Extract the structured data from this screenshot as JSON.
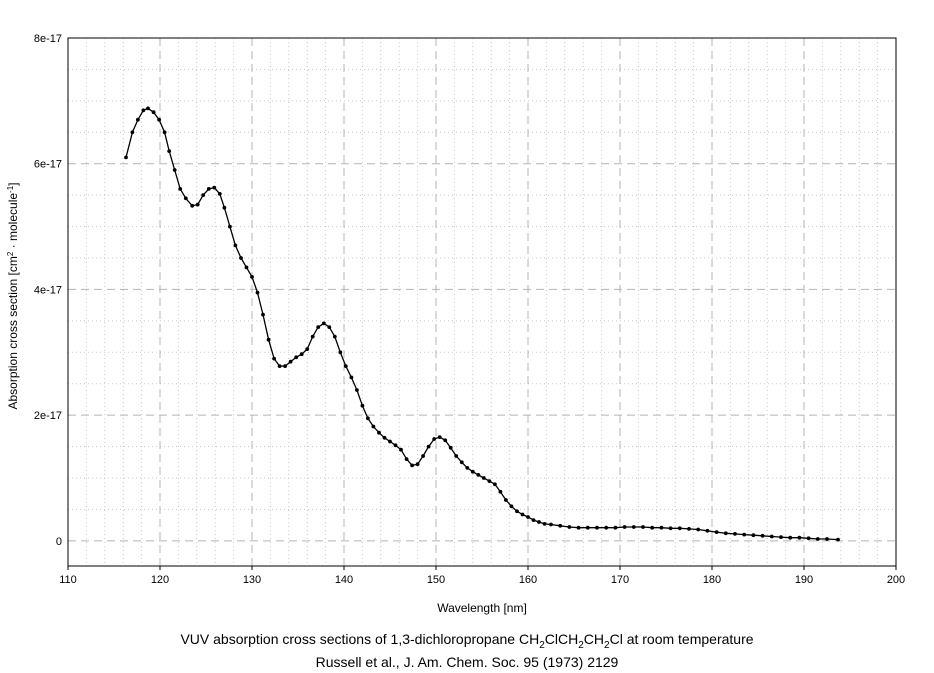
{
  "chart_data": {
    "type": "line",
    "xlabel": "Wavelength [nm]",
    "ylabel_parts": [
      "Absorption cross section [cm",
      "2",
      " · molecule",
      "-1",
      "]"
    ],
    "xlim": [
      110,
      200
    ],
    "ylim": [
      -4e-18,
      8e-17
    ],
    "x_ticks": [
      110,
      120,
      130,
      140,
      150,
      160,
      170,
      180,
      190,
      200
    ],
    "x_tick_labels": [
      "110",
      "120",
      "130",
      "140",
      "150",
      "160",
      "170",
      "180",
      "190",
      "200"
    ],
    "y_ticks": [
      0,
      2e-17,
      4e-17,
      6e-17,
      8e-17
    ],
    "y_tick_labels": [
      "0",
      "2e-17",
      "4e-17",
      "6e-17",
      "8e-17"
    ],
    "grid": true,
    "legend": "none",
    "series": [
      {
        "color": "#000000",
        "marker": "dot",
        "x": [
          116.3,
          117.0,
          117.6,
          118.2,
          118.7,
          119.3,
          119.9,
          120.5,
          121.0,
          121.6,
          122.2,
          122.8,
          123.5,
          124.1,
          124.7,
          125.3,
          125.9,
          126.5,
          127.0,
          127.6,
          128.2,
          128.8,
          129.4,
          130.0,
          130.6,
          131.2,
          131.8,
          132.4,
          133.0,
          133.6,
          134.2,
          134.8,
          135.4,
          136.0,
          136.6,
          137.2,
          137.8,
          138.4,
          139.0,
          139.6,
          140.2,
          140.8,
          141.4,
          142.0,
          142.6,
          143.2,
          143.8,
          144.4,
          145.0,
          145.6,
          146.2,
          146.8,
          147.4,
          148.0,
          148.6,
          149.2,
          149.8,
          150.4,
          151.0,
          151.6,
          152.2,
          152.8,
          153.4,
          154.0,
          154.6,
          155.2,
          155.8,
          156.4,
          157.0,
          157.6,
          158.2,
          158.8,
          159.4,
          160.0,
          160.6,
          161.2,
          161.8,
          162.5,
          163.5,
          164.5,
          165.5,
          166.5,
          167.5,
          168.5,
          169.5,
          170.5,
          171.5,
          172.5,
          173.5,
          174.5,
          175.5,
          176.5,
          177.5,
          178.5,
          179.5,
          180.5,
          181.5,
          182.5,
          183.5,
          184.5,
          185.5,
          186.5,
          187.5,
          188.5,
          189.5,
          190.5,
          191.5,
          192.5,
          193.7
        ],
        "y": [
          6.1e-17,
          6.5e-17,
          6.7e-17,
          6.85e-17,
          6.88e-17,
          6.82e-17,
          6.7e-17,
          6.5e-17,
          6.2e-17,
          5.9e-17,
          5.6e-17,
          5.45e-17,
          5.33e-17,
          5.35e-17,
          5.5e-17,
          5.6e-17,
          5.62e-17,
          5.52e-17,
          5.3e-17,
          5e-17,
          4.7e-17,
          4.5e-17,
          4.35e-17,
          4.2e-17,
          3.95e-17,
          3.6e-17,
          3.2e-17,
          2.9e-17,
          2.78e-17,
          2.78e-17,
          2.85e-17,
          2.92e-17,
          2.97e-17,
          3.05e-17,
          3.25e-17,
          3.4e-17,
          3.46e-17,
          3.4e-17,
          3.25e-17,
          3e-17,
          2.78e-17,
          2.6e-17,
          2.4e-17,
          2.15e-17,
          1.95e-17,
          1.82e-17,
          1.72e-17,
          1.64e-17,
          1.58e-17,
          1.52e-17,
          1.45e-17,
          1.3e-17,
          1.2e-17,
          1.22e-17,
          1.35e-17,
          1.5e-17,
          1.62e-17,
          1.65e-17,
          1.6e-17,
          1.48e-17,
          1.35e-17,
          1.25e-17,
          1.16e-17,
          1.1e-17,
          1.05e-17,
          1e-17,
          9.5e-18,
          9e-18,
          7.8e-18,
          6.5e-18,
          5.5e-18,
          4.7e-18,
          4.2e-18,
          3.8e-18,
          3.3e-18,
          3e-18,
          2.7e-18,
          2.6e-18,
          2.4e-18,
          2.2e-18,
          2.1e-18,
          2.1e-18,
          2.1e-18,
          2.1e-18,
          2.1e-18,
          2.2e-18,
          2.2e-18,
          2.2e-18,
          2.1e-18,
          2.1e-18,
          2e-18,
          2e-18,
          1.9e-18,
          1.8e-18,
          1.6e-18,
          1.4e-18,
          1.2e-18,
          1.1e-18,
          1e-18,
          9e-19,
          8e-19,
          7e-19,
          6e-19,
          5e-19,
          5e-19,
          4e-19,
          3e-19,
          3e-19,
          2e-19
        ]
      }
    ]
  },
  "caption": {
    "line1_parts": [
      "VUV absorption cross sections of 1,3-dichloropropane CH",
      "2",
      "ClCH",
      "2",
      "CH",
      "2",
      "Cl at room temperature"
    ],
    "line2": "Russell et al., J. Am. Chem. Soc. 95 (1973) 2129"
  }
}
